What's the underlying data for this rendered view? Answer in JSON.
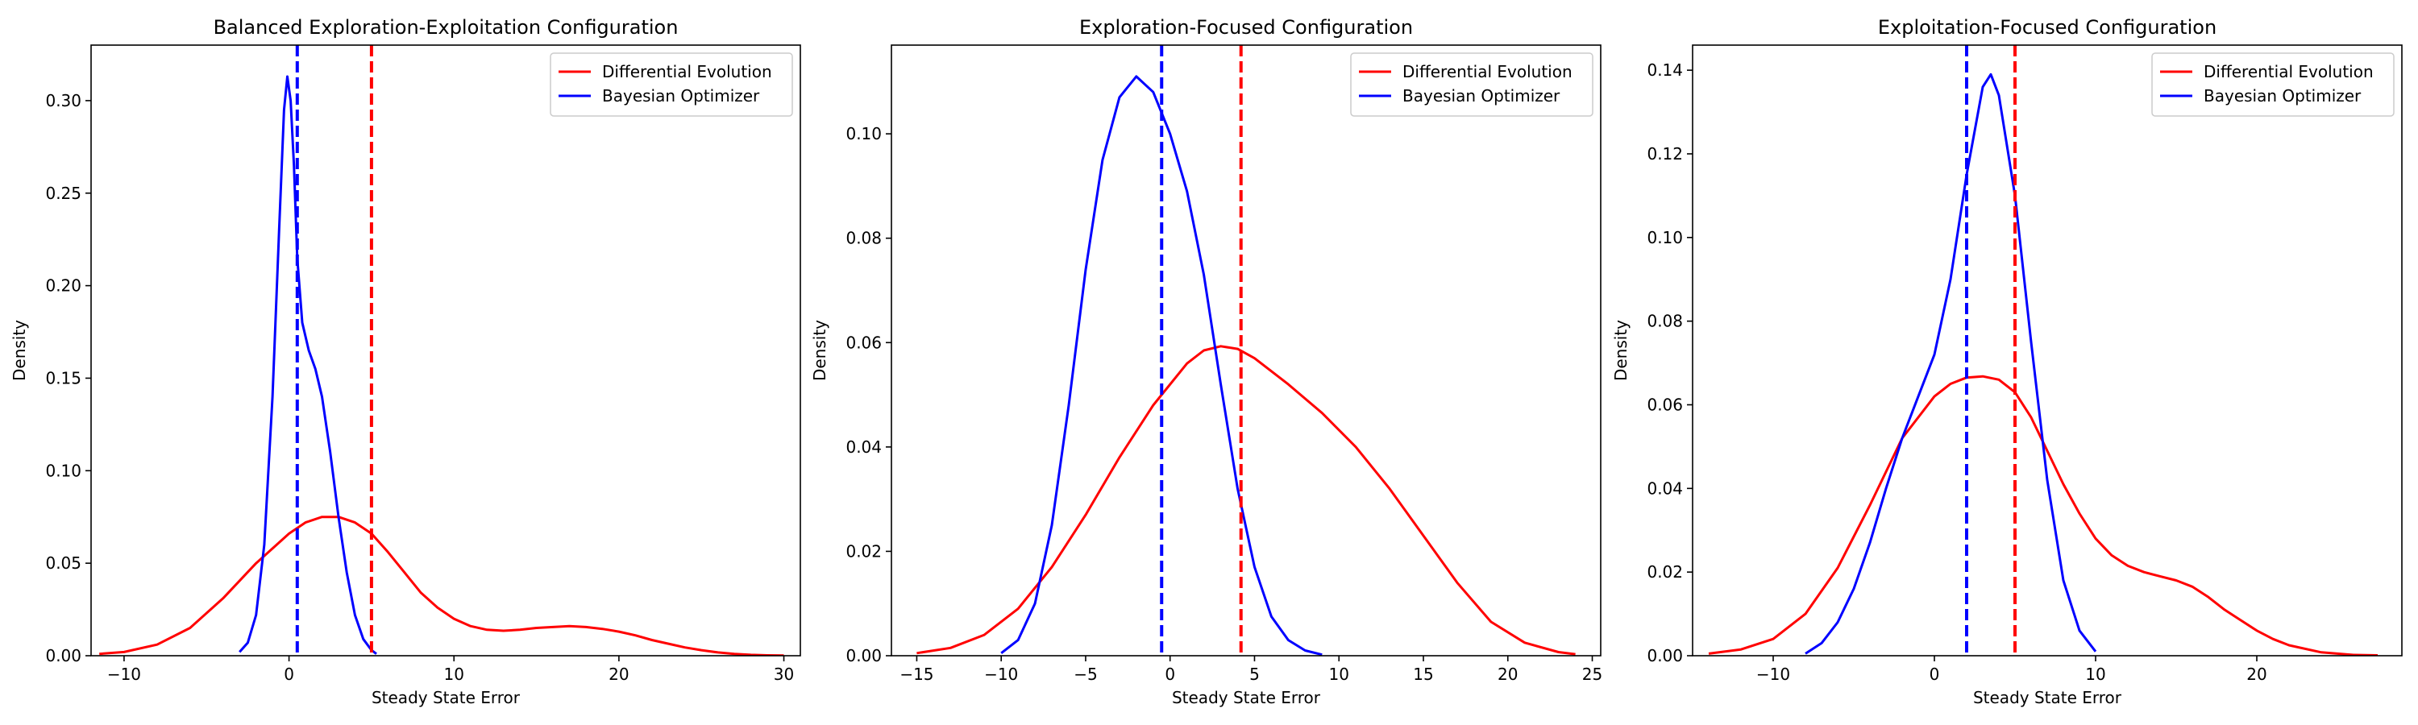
{
  "colors": {
    "de": "#ff0000",
    "bo": "#0000ff"
  },
  "chart_data": [
    {
      "type": "line",
      "title": "Balanced Exploration-Exploitation Configuration",
      "xlabel": "Steady State Error",
      "ylabel": "Density",
      "xlim": [
        -12,
        31
      ],
      "ylim": [
        0,
        0.33
      ],
      "xticks": [
        -10,
        0,
        10,
        20,
        30
      ],
      "yticks": [
        0.0,
        0.05,
        0.1,
        0.15,
        0.2,
        0.25,
        0.3
      ],
      "ytick_labels": [
        "0.00",
        "0.05",
        "0.10",
        "0.15",
        "0.20",
        "0.25",
        "0.30"
      ],
      "legend": {
        "placement": "top-right",
        "entries": [
          "Differential Evolution",
          "Bayesian Optimizer"
        ]
      },
      "series": [
        {
          "name": "Differential Evolution",
          "color": "#ff0000",
          "points": [
            [
              -11.5,
              0.001
            ],
            [
              -10,
              0.002
            ],
            [
              -8,
              0.006
            ],
            [
              -6,
              0.015
            ],
            [
              -4,
              0.031
            ],
            [
              -2,
              0.05
            ],
            [
              0,
              0.066
            ],
            [
              1,
              0.072
            ],
            [
              2,
              0.075
            ],
            [
              3,
              0.075
            ],
            [
              4,
              0.072
            ],
            [
              5,
              0.066
            ],
            [
              6,
              0.056
            ],
            [
              7,
              0.045
            ],
            [
              8,
              0.034
            ],
            [
              9,
              0.026
            ],
            [
              10,
              0.02
            ],
            [
              11,
              0.016
            ],
            [
              12,
              0.014
            ],
            [
              13,
              0.0135
            ],
            [
              14,
              0.014
            ],
            [
              15,
              0.015
            ],
            [
              16,
              0.0155
            ],
            [
              17,
              0.016
            ],
            [
              18,
              0.0155
            ],
            [
              19,
              0.0145
            ],
            [
              20,
              0.013
            ],
            [
              21,
              0.011
            ],
            [
              22,
              0.0085
            ],
            [
              23,
              0.0065
            ],
            [
              24,
              0.0045
            ],
            [
              25,
              0.003
            ],
            [
              26,
              0.0018
            ],
            [
              27,
              0.001
            ],
            [
              28,
              0.0005
            ],
            [
              29,
              0.0002
            ],
            [
              30,
              0.0001
            ]
          ]
        },
        {
          "name": "Bayesian Optimizer",
          "color": "#0000ff",
          "points": [
            [
              -3,
              0.002
            ],
            [
              -2.5,
              0.007
            ],
            [
              -2,
              0.022
            ],
            [
              -1.5,
              0.06
            ],
            [
              -1,
              0.14
            ],
            [
              -0.6,
              0.23
            ],
            [
              -0.3,
              0.295
            ],
            [
              -0.1,
              0.313
            ],
            [
              0.1,
              0.3
            ],
            [
              0.3,
              0.265
            ],
            [
              0.5,
              0.215
            ],
            [
              0.8,
              0.18
            ],
            [
              1.2,
              0.165
            ],
            [
              1.6,
              0.155
            ],
            [
              2,
              0.14
            ],
            [
              2.5,
              0.11
            ],
            [
              3,
              0.075
            ],
            [
              3.5,
              0.045
            ],
            [
              4,
              0.022
            ],
            [
              4.5,
              0.009
            ],
            [
              5,
              0.003
            ],
            [
              5.3,
              0.001
            ]
          ]
        }
      ],
      "vlines": [
        {
          "x": 0.5,
          "color": "#0000ff",
          "style": "dashed"
        },
        {
          "x": 5.0,
          "color": "#ff0000",
          "style": "dashed"
        }
      ]
    },
    {
      "type": "line",
      "title": "Exploration-Focused Configuration",
      "xlabel": "Steady State Error",
      "ylabel": "Density",
      "xlim": [
        -16.5,
        25.5
      ],
      "ylim": [
        0,
        0.117
      ],
      "xticks": [
        -15,
        -10,
        -5,
        0,
        5,
        10,
        15,
        20,
        25
      ],
      "yticks": [
        0.0,
        0.02,
        0.04,
        0.06,
        0.08,
        0.1
      ],
      "ytick_labels": [
        "0.00",
        "0.02",
        "0.04",
        "0.06",
        "0.08",
        "0.10"
      ],
      "legend": {
        "placement": "top-right",
        "entries": [
          "Differential Evolution",
          "Bayesian Optimizer"
        ]
      },
      "series": [
        {
          "name": "Differential Evolution",
          "color": "#ff0000",
          "points": [
            [
              -15,
              0.0005
            ],
            [
              -13,
              0.0015
            ],
            [
              -11,
              0.004
            ],
            [
              -9,
              0.009
            ],
            [
              -7,
              0.017
            ],
            [
              -5,
              0.027
            ],
            [
              -3,
              0.038
            ],
            [
              -1,
              0.048
            ],
            [
              1,
              0.056
            ],
            [
              2,
              0.0585
            ],
            [
              3,
              0.0593
            ],
            [
              4,
              0.0588
            ],
            [
              5,
              0.057
            ],
            [
              7,
              0.052
            ],
            [
              9,
              0.0465
            ],
            [
              11,
              0.04
            ],
            [
              13,
              0.032
            ],
            [
              15,
              0.023
            ],
            [
              17,
              0.014
            ],
            [
              19,
              0.0065
            ],
            [
              21,
              0.0025
            ],
            [
              23,
              0.0007
            ],
            [
              24,
              0.0003
            ]
          ]
        },
        {
          "name": "Bayesian Optimizer",
          "color": "#0000ff",
          "points": [
            [
              -10,
              0.0005
            ],
            [
              -9,
              0.003
            ],
            [
              -8,
              0.01
            ],
            [
              -7,
              0.025
            ],
            [
              -6,
              0.048
            ],
            [
              -5,
              0.074
            ],
            [
              -4,
              0.095
            ],
            [
              -3,
              0.107
            ],
            [
              -2,
              0.111
            ],
            [
              -1,
              0.108
            ],
            [
              0,
              0.1
            ],
            [
              1,
              0.089
            ],
            [
              2,
              0.073
            ],
            [
              3,
              0.052
            ],
            [
              4,
              0.032
            ],
            [
              5,
              0.017
            ],
            [
              6,
              0.0075
            ],
            [
              7,
              0.003
            ],
            [
              8,
              0.001
            ],
            [
              9,
              0.0002
            ]
          ]
        }
      ],
      "vlines": [
        {
          "x": -0.5,
          "color": "#0000ff",
          "style": "dashed"
        },
        {
          "x": 4.2,
          "color": "#ff0000",
          "style": "dashed"
        }
      ]
    },
    {
      "type": "line",
      "title": "Exploitation-Focused Configuration",
      "xlabel": "Steady State Error",
      "ylabel": "Density",
      "xlim": [
        -15,
        29
      ],
      "ylim": [
        0,
        0.146
      ],
      "xticks": [
        -10,
        0,
        10,
        20
      ],
      "yticks": [
        0.0,
        0.02,
        0.04,
        0.06,
        0.08,
        0.1,
        0.12,
        0.14
      ],
      "ytick_labels": [
        "0.00",
        "0.02",
        "0.04",
        "0.06",
        "0.08",
        "0.10",
        "0.12",
        "0.14"
      ],
      "legend": {
        "placement": "top-right",
        "entries": [
          "Differential Evolution",
          "Bayesian Optimizer"
        ]
      },
      "series": [
        {
          "name": "Differential Evolution",
          "color": "#ff0000",
          "points": [
            [
              -14,
              0.0005
            ],
            [
              -12,
              0.0015
            ],
            [
              -10,
              0.004
            ],
            [
              -8,
              0.01
            ],
            [
              -6,
              0.021
            ],
            [
              -4,
              0.036
            ],
            [
              -2,
              0.052
            ],
            [
              0,
              0.062
            ],
            [
              1,
              0.065
            ],
            [
              2,
              0.0665
            ],
            [
              3,
              0.0668
            ],
            [
              4,
              0.066
            ],
            [
              5,
              0.063
            ],
            [
              6,
              0.057
            ],
            [
              7,
              0.049
            ],
            [
              8,
              0.041
            ],
            [
              9,
              0.034
            ],
            [
              10,
              0.028
            ],
            [
              11,
              0.024
            ],
            [
              12,
              0.0215
            ],
            [
              13,
              0.02
            ],
            [
              14,
              0.019
            ],
            [
              15,
              0.018
            ],
            [
              16,
              0.0165
            ],
            [
              17,
              0.014
            ],
            [
              18,
              0.011
            ],
            [
              19,
              0.0085
            ],
            [
              20,
              0.006
            ],
            [
              21,
              0.004
            ],
            [
              22,
              0.0025
            ],
            [
              24,
              0.0008
            ],
            [
              26,
              0.0002
            ],
            [
              27.5,
              0.0001
            ]
          ]
        },
        {
          "name": "Bayesian Optimizer",
          "color": "#0000ff",
          "points": [
            [
              -8,
              0.0005
            ],
            [
              -7,
              0.003
            ],
            [
              -6,
              0.008
            ],
            [
              -5,
              0.016
            ],
            [
              -4,
              0.027
            ],
            [
              -3,
              0.04
            ],
            [
              -2,
              0.052
            ],
            [
              -1,
              0.062
            ],
            [
              0,
              0.072
            ],
            [
              1,
              0.09
            ],
            [
              2,
              0.115
            ],
            [
              3,
              0.136
            ],
            [
              3.5,
              0.139
            ],
            [
              4,
              0.134
            ],
            [
              5,
              0.11
            ],
            [
              6,
              0.075
            ],
            [
              7,
              0.042
            ],
            [
              8,
              0.018
            ],
            [
              9,
              0.006
            ],
            [
              10,
              0.001
            ]
          ]
        }
      ],
      "vlines": [
        {
          "x": 2.0,
          "color": "#0000ff",
          "style": "dashed"
        },
        {
          "x": 5.0,
          "color": "#ff0000",
          "style": "dashed"
        }
      ]
    }
  ]
}
